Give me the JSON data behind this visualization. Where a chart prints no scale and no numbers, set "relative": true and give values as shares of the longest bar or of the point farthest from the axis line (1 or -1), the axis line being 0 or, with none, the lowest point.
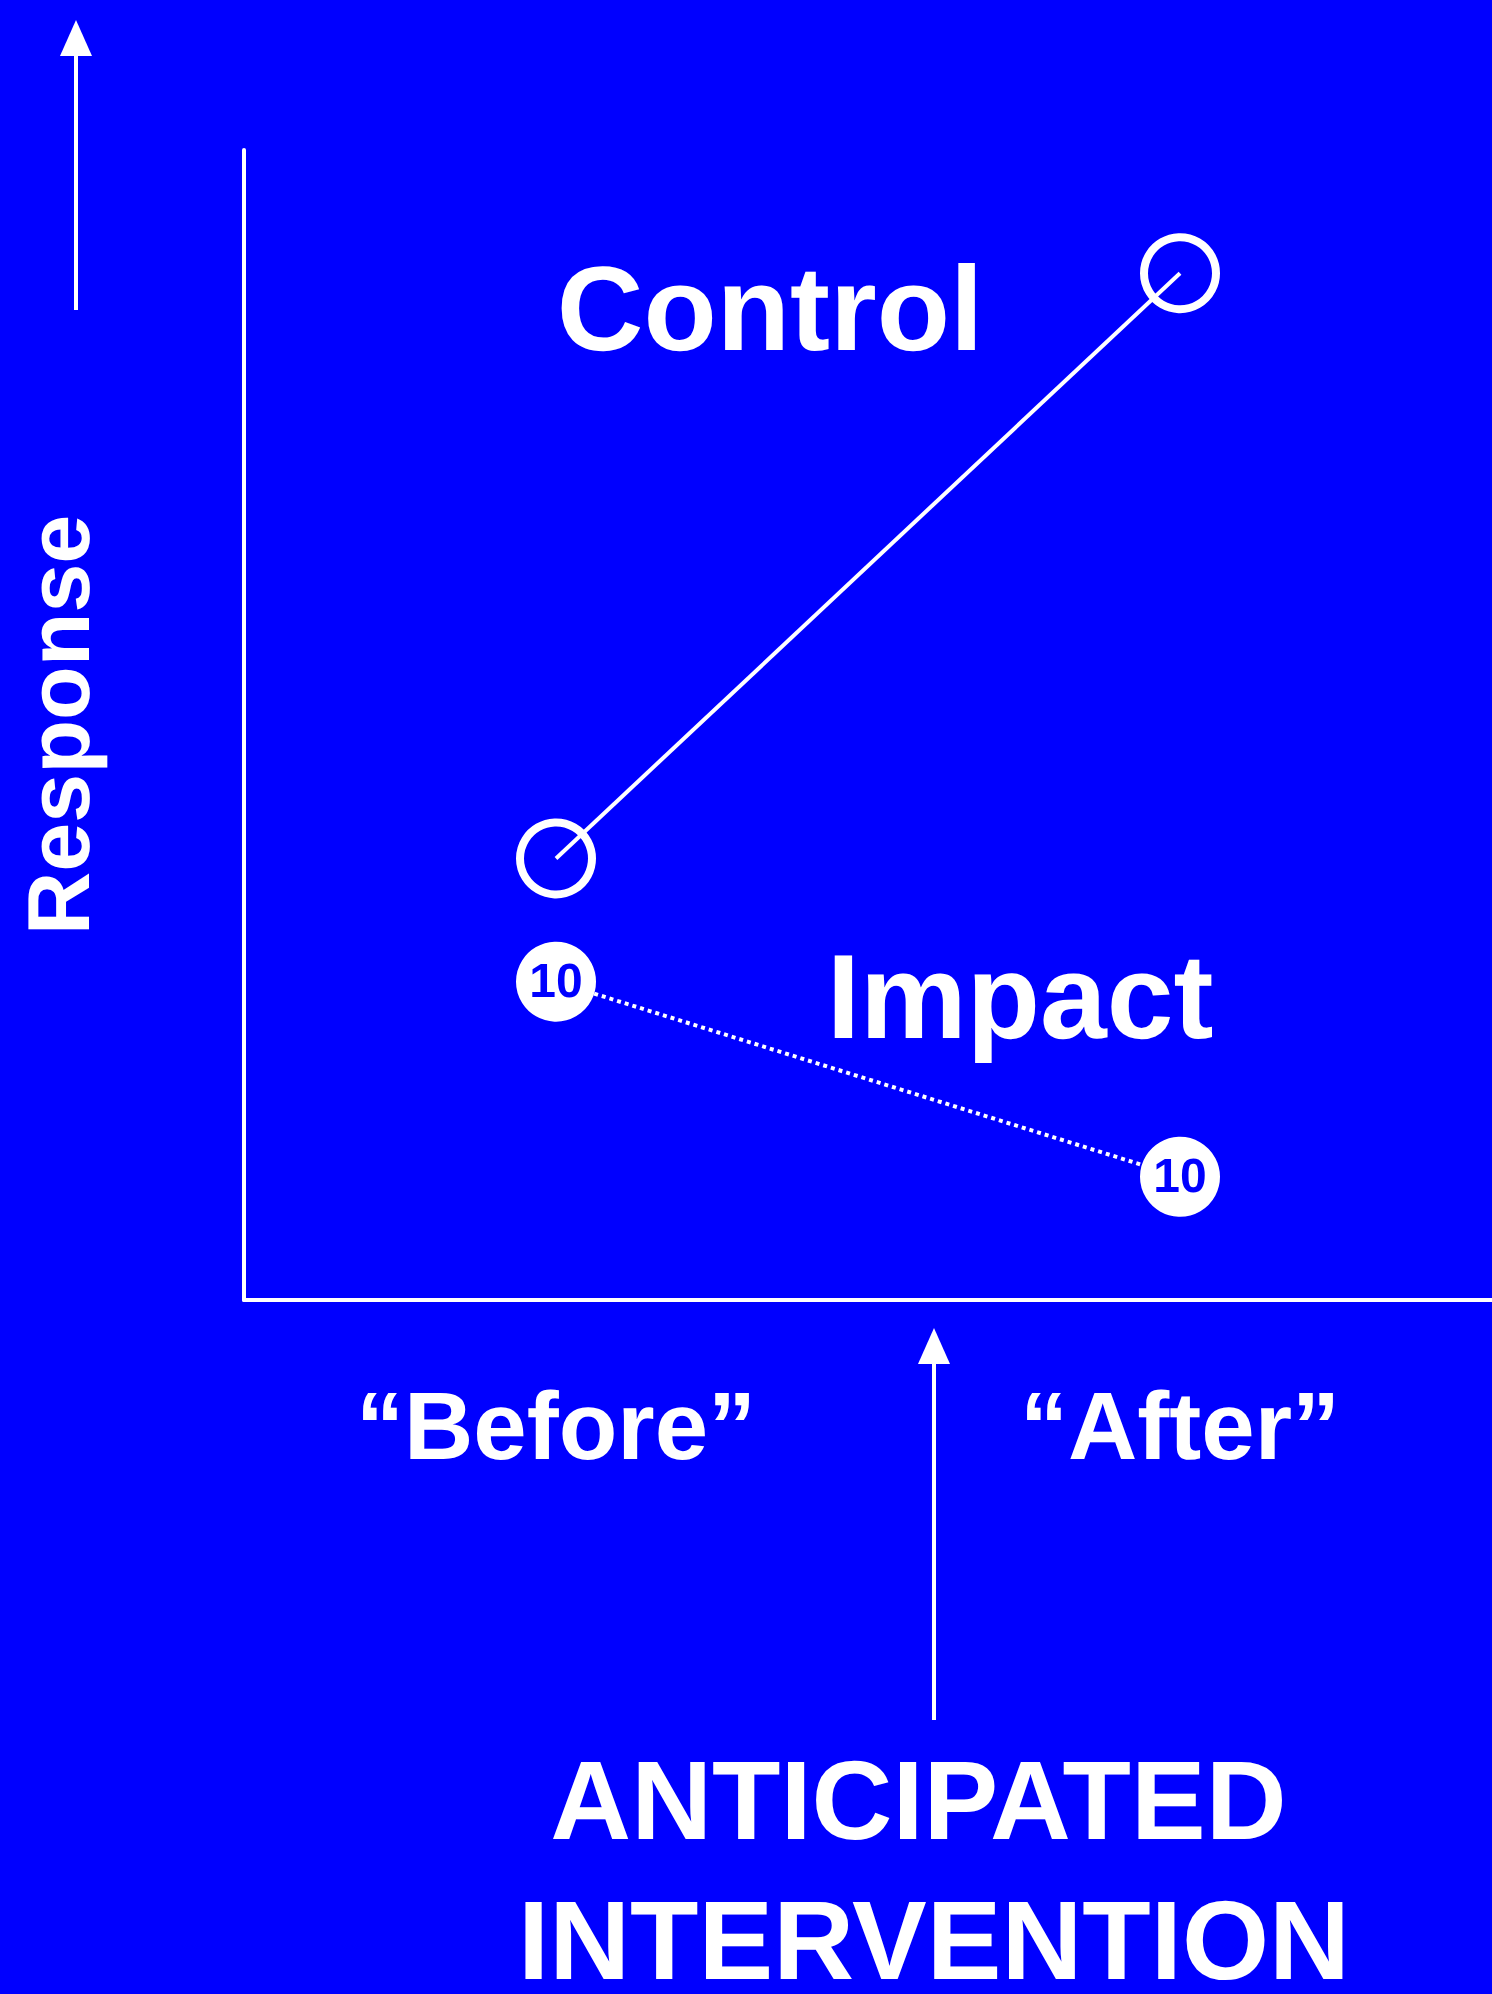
{
  "chart_data": {
    "type": "line",
    "relative": true,
    "ylabel": "Response",
    "categories": [
      "“Before”",
      "“After”"
    ],
    "series": [
      {
        "name": "Control",
        "color": "#ffffff",
        "values": [
          0.43,
          1
        ],
        "line_style": "solid"
      },
      {
        "name": "Impact",
        "color": "#ffffff",
        "values": [
          0.31,
          0.12
        ],
        "line_style": "dotted"
      }
    ],
    "marker": "circle",
    "legend": false,
    "grid": false,
    "annotations": [
      {
        "text": "10",
        "x": "“Before”",
        "y": 0.31
      },
      {
        "text": "10",
        "x": "“After”",
        "y": 0.12
      },
      "ANTICIPATED INTERVENTION"
    ]
  }
}
